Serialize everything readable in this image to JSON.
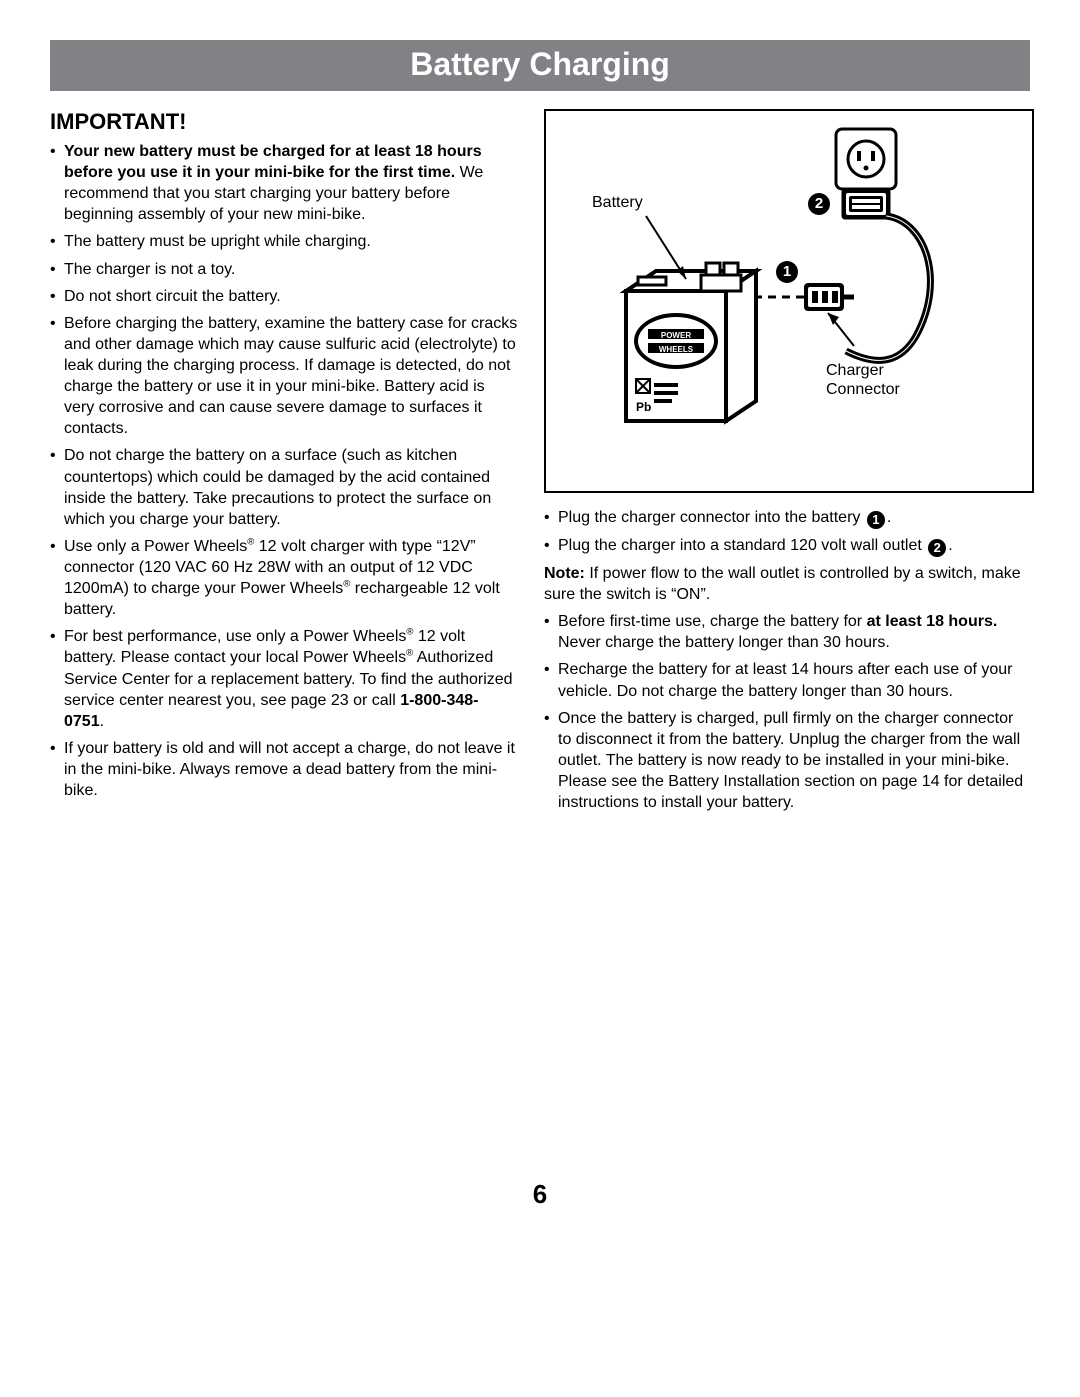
{
  "title": "Battery Charging",
  "left": {
    "heading": "IMPORTANT!",
    "items": [
      "<b>Your new battery must be charged for at least 18 hours before you use it in your mini-bike for the first time.</b> We recommend that you start charging your battery before beginning assembly of your new mini-bike.",
      "The battery must be upright while charging.",
      "The charger is not a toy.",
      "Do not short circuit the battery.",
      "Before charging the battery, examine the battery case for cracks and other damage which may cause sulfuric acid (electrolyte) to leak during the charging process. If damage is detected, do not charge the battery or use it in your mini-bike. Battery acid is very corrosive and can cause severe damage to surfaces it contacts.",
      "Do not charge the battery on a surface (such as kitchen countertops) which could be damaged by the acid contained inside the battery. Take precautions to protect the surface on which you charge your battery.",
      "Use only a Power Wheels<sup class=\"sup\">®</sup> 12 volt charger with type “12V” connector (120 VAC 60 Hz 28W with an output of 12 VDC 1200mA) to charge your Power Wheels<sup class=\"sup\">®</sup> rechargeable 12 volt battery.",
      "For best performance, use only a Power Wheels<sup class=\"sup\">®</sup> 12 volt battery. Please contact your local Power Wheels<sup class=\"sup\">®</sup> Authorized Service Center for a replacement battery. To find the authorized service center nearest you, see page 23 or call <b>1-800-348-0751</b>.",
      "If your battery is old and will not accept a charge, do not leave it in the mini-bike. Always remove a dead battery from the mini-bike."
    ]
  },
  "diagram": {
    "battery_label": "Battery",
    "charger_label": "Charger\nConnector",
    "num1": "1",
    "num2": "2",
    "colors": {
      "stroke": "#000000",
      "fill_white": "#ffffff",
      "fill_grey": "#d9d9d9"
    }
  },
  "right": {
    "items": [
      "Plug the charger connector into the battery <span class=\"circ-num\">1</span>.",
      "Plug the charger into a standard 120 volt wall outlet <span class=\"circ-num\">2</span>."
    ],
    "note": "<b>Note:</b> If power flow to the wall outlet is controlled by a switch, make sure the switch is “ON”.",
    "items2": [
      "Before first-time use, charge the battery for <b>at least 18 hours.</b> Never charge the battery longer than 30 hours.",
      "Recharge the battery for at least 14 hours after each use of your vehicle. Do not charge the battery longer than 30 hours.",
      "Once the battery is charged, pull firmly on the charger connector to disconnect it from the battery. Unplug the charger from the wall outlet. The battery is now ready to be installed in your mini-bike. Please see the Battery Installation section on page 14 for detailed instructions to install your battery."
    ]
  },
  "page_number": "6"
}
